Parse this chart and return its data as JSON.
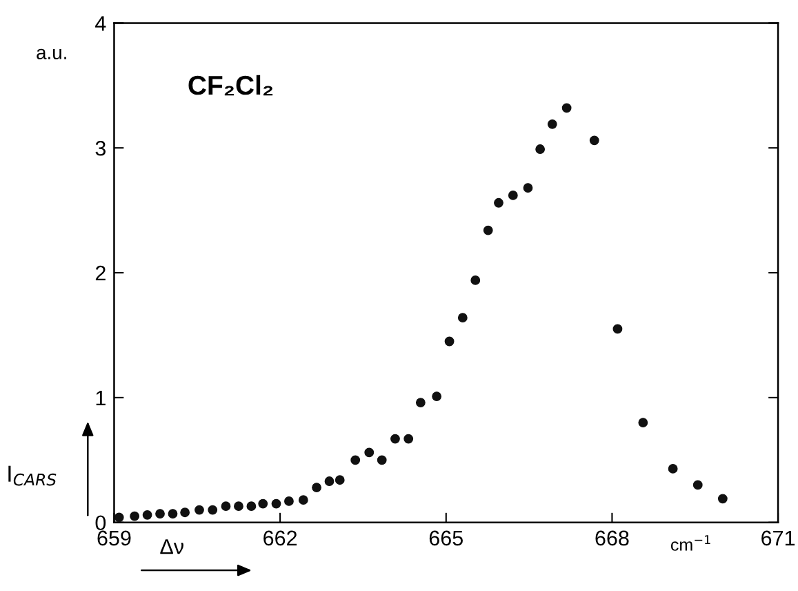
{
  "chart_data": {
    "type": "scatter",
    "xlabel": "Δν",
    "ylabel": "I$_{CARS}$",
    "annotations": [
      "a.u.",
      "cm$^{−1}$",
      "CF₂Cl₂"
    ],
    "x": [
      659.09,
      659.37,
      659.6,
      659.83,
      660.06,
      660.28,
      660.54,
      660.78,
      661.02,
      661.25,
      661.48,
      661.69,
      661.93,
      662.16,
      662.42,
      662.66,
      662.89,
      663.08,
      663.36,
      663.61,
      663.84,
      664.08,
      664.32,
      664.54,
      664.83,
      665.06,
      665.3,
      665.53,
      665.76,
      665.95,
      666.21,
      666.48,
      666.7,
      666.92,
      667.18,
      667.68,
      668.1,
      668.56,
      669.1,
      669.55,
      670.0
    ],
    "series": [
      {
        "color": "#111111",
        "values": [
          0.04,
          0.05,
          0.06,
          0.07,
          0.07,
          0.08,
          0.1,
          0.1,
          0.13,
          0.13,
          0.13,
          0.15,
          0.15,
          0.17,
          0.18,
          0.28,
          0.33,
          0.34,
          0.5,
          0.56,
          0.5,
          0.67,
          0.67,
          0.96,
          1.01,
          1.45,
          1.64,
          1.94,
          2.34,
          2.56,
          2.62,
          2.68,
          2.99,
          3.19,
          3.32,
          3.06,
          1.55,
          0.8,
          0.43,
          0.3,
          0.19
        ]
      }
    ],
    "xlim": [
      659,
      671
    ],
    "xticks": [
      659,
      662,
      665,
      668,
      671
    ],
    "ylim": [
      0,
      4
    ],
    "yticks": [
      0,
      1,
      2,
      3,
      4
    ],
    "grid": false,
    "legend": false,
    "marker": "circle"
  }
}
